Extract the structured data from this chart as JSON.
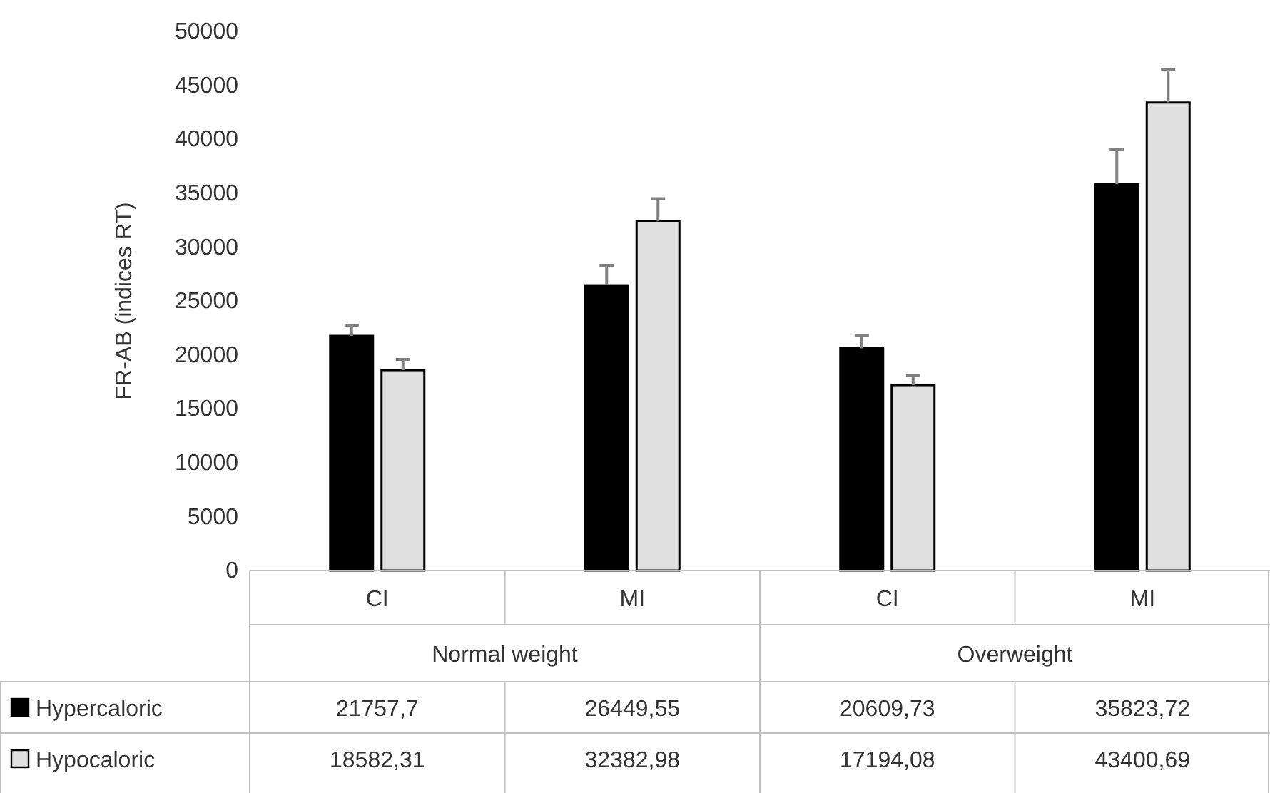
{
  "chart_data": {
    "type": "bar",
    "ylabel": "FR-AB (indices RT)",
    "categories": [
      "CI",
      "MI",
      "CI",
      "MI"
    ],
    "annotations": [
      "Normal weight",
      "Overweight"
    ],
    "series": [
      {
        "name": "Hypercaloric",
        "color": "#000000",
        "values": [
          21757.7,
          26449.55,
          20609.73,
          35823.72
        ],
        "value_labels": [
          "21757,7",
          "26449,55",
          "20609,73",
          "35823,72"
        ],
        "errors": [
          1000,
          1850,
          1200,
          3200
        ]
      },
      {
        "name": "Hypocaloric",
        "color": "#e0e0e0",
        "values": [
          18582.31,
          32382.98,
          17194.08,
          43400.69
        ],
        "value_labels": [
          "18582,31",
          "32382,98",
          "17194,08",
          "43400,69"
        ],
        "errors": [
          1000,
          2100,
          900,
          3100
        ]
      }
    ],
    "legend": "bottom left",
    "ylim": [
      0,
      50000
    ],
    "yticks": [
      0,
      5000,
      10000,
      15000,
      20000,
      25000,
      30000,
      35000,
      40000,
      45000,
      50000
    ]
  }
}
